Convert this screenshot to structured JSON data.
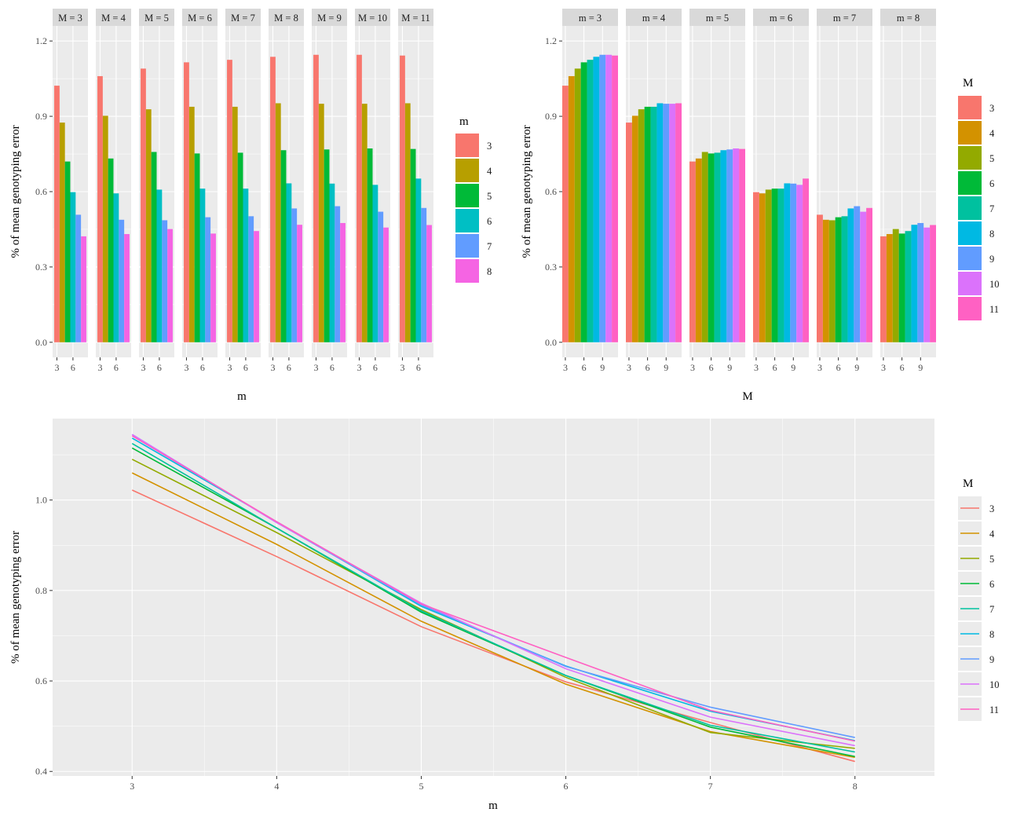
{
  "colors": {
    "m": {
      "3": "#F8766D",
      "4": "#B79F00",
      "5": "#00BA38",
      "6": "#00BFC4",
      "7": "#619CFF",
      "8": "#F564E3"
    },
    "M": {
      "3": "#F8766D",
      "4": "#D39200",
      "5": "#93AA00",
      "6": "#00BA38",
      "7": "#00C19F",
      "8": "#00B9E3",
      "9": "#619CFF",
      "10": "#DB72FB",
      "11": "#FF61C3"
    },
    "panel_bg": "#EBEBEB",
    "strip_bg": "#D9D9D9",
    "grid": "#FFFFFF"
  },
  "chart_data": [
    {
      "type": "bar",
      "facet_by": "M",
      "facets": [
        "M = 3",
        "M = 4",
        "M = 5",
        "M = 6",
        "M = 7",
        "M = 8",
        "M = 9",
        "M = 10",
        "M = 11"
      ],
      "xlabel": "m",
      "ylabel": "% of mean genotyping error",
      "x_ticks": [
        "3",
        "6"
      ],
      "ylim": [
        0,
        1.2
      ],
      "y_ticks": [
        "0.0",
        "0.3",
        "0.6",
        "0.9",
        "1.2"
      ],
      "legend": {
        "title": "m",
        "entries": [
          "3",
          "4",
          "5",
          "6",
          "7",
          "8"
        ],
        "placement": "right"
      }
    },
    {
      "type": "bar",
      "facet_by": "m",
      "facets": [
        "m = 3",
        "m = 4",
        "m = 5",
        "m = 6",
        "m = 7",
        "m = 8"
      ],
      "xlabel": "M",
      "ylabel": "% of mean genotyping error",
      "x_ticks": [
        "3",
        "6",
        "9"
      ],
      "ylim": [
        0,
        1.2
      ],
      "y_ticks": [
        "0.0",
        "0.3",
        "0.6",
        "0.9",
        "1.2"
      ],
      "legend": {
        "title": "M",
        "entries": [
          "3",
          "4",
          "5",
          "6",
          "7",
          "8",
          "9",
          "10",
          "11"
        ],
        "placement": "right"
      }
    },
    {
      "type": "line",
      "xlabel": "m",
      "ylabel": "% of mean genotyping error",
      "x": [
        3,
        4,
        5,
        6,
        7,
        8
      ],
      "x_ticks": [
        "3",
        "4",
        "5",
        "6",
        "7",
        "8"
      ],
      "y_ticks": [
        "0.4",
        "0.6",
        "0.8",
        "1.0"
      ],
      "ylim": [
        0.39,
        1.18
      ],
      "legend": {
        "title": "M",
        "entries": [
          "3",
          "4",
          "5",
          "6",
          "7",
          "8",
          "9",
          "10",
          "11"
        ],
        "placement": "right"
      }
    }
  ],
  "series": [
    {
      "M": "3",
      "values": [
        1.022,
        0.875,
        0.72,
        0.598,
        0.508,
        0.422
      ]
    },
    {
      "M": "4",
      "values": [
        1.06,
        0.902,
        0.732,
        0.593,
        0.488,
        0.431
      ]
    },
    {
      "M": "5",
      "values": [
        1.09,
        0.928,
        0.758,
        0.608,
        0.486,
        0.451
      ]
    },
    {
      "M": "6",
      "values": [
        1.115,
        0.938,
        0.752,
        0.612,
        0.498,
        0.433
      ]
    },
    {
      "M": "7",
      "values": [
        1.125,
        0.938,
        0.755,
        0.612,
        0.502,
        0.443
      ]
    },
    {
      "M": "8",
      "values": [
        1.137,
        0.952,
        0.765,
        0.633,
        0.533,
        0.468
      ]
    },
    {
      "M": "9",
      "values": [
        1.145,
        0.95,
        0.768,
        0.632,
        0.542,
        0.475
      ]
    },
    {
      "M": "10",
      "values": [
        1.145,
        0.95,
        0.772,
        0.627,
        0.52,
        0.457
      ]
    },
    {
      "M": "11",
      "values": [
        1.142,
        0.952,
        0.77,
        0.652,
        0.535,
        0.467
      ]
    }
  ]
}
